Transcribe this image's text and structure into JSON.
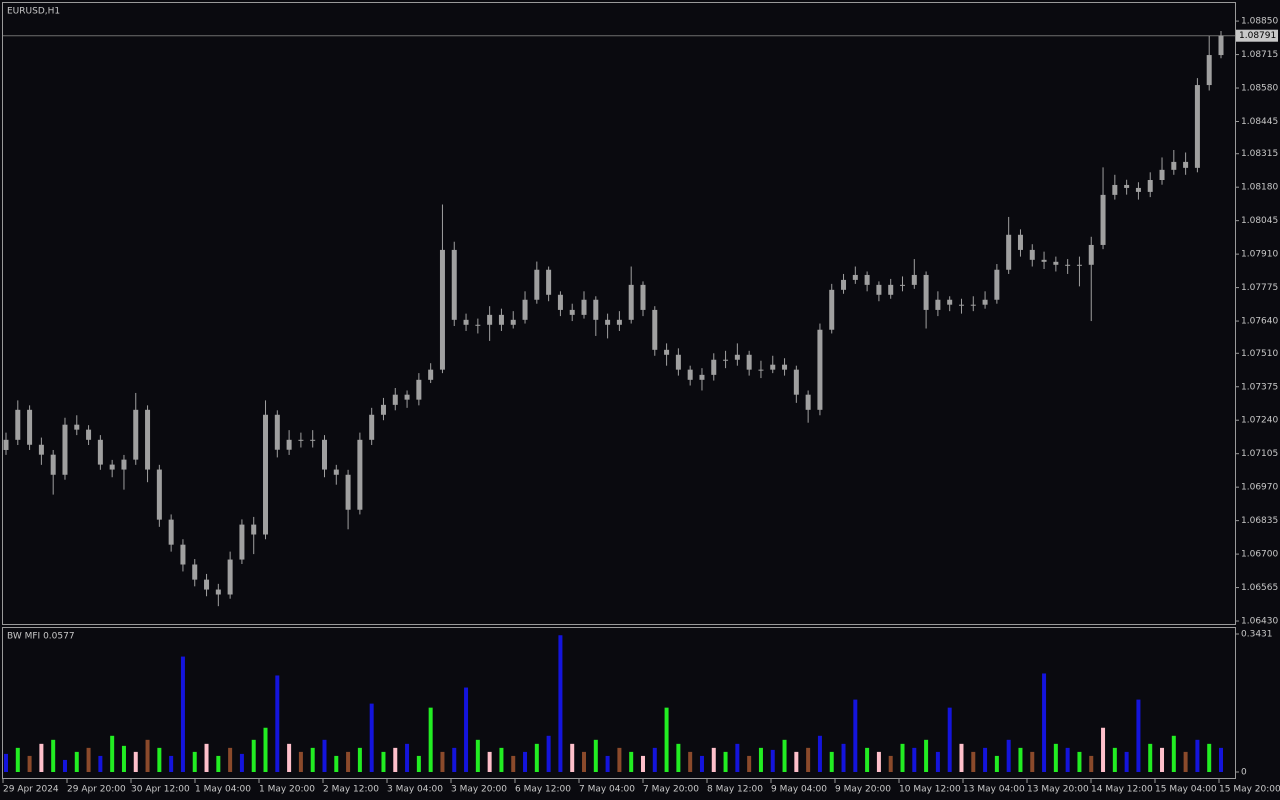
{
  "chart_data": [
    {
      "type": "candlestick",
      "title": "EURUSD,H1",
      "color": "#a0a0a0",
      "open": [
        1.0712,
        1.07161,
        1.07282,
        1.07141,
        1.07101,
        1.0702,
        1.07222,
        1.07202,
        1.07161,
        1.07061,
        1.07041,
        1.07081,
        1.07282,
        1.07041,
        1.06839,
        1.06738,
        1.06658,
        1.06597,
        1.06557,
        1.06537,
        1.06678,
        1.06819,
        1.06779,
        1.07262,
        1.07121,
        1.07161,
        1.07161,
        1.07161,
        1.07041,
        1.0702,
        1.06879,
        1.07161,
        1.07262,
        1.07302,
        1.07343,
        1.07323,
        1.07403,
        1.07444,
        1.07927,
        1.07645,
        1.07625,
        1.07625,
        1.07665,
        1.07625,
        1.07645,
        1.07726,
        1.07847,
        1.07746,
        1.07685,
        1.07665,
        1.07726,
        1.07645,
        1.07625,
        1.07645,
        1.07786,
        1.07685,
        1.07524,
        1.07504,
        1.07444,
        1.07403,
        1.07423,
        1.07484,
        1.07484,
        1.07504,
        1.07444,
        1.07444,
        1.07464,
        1.07444,
        1.07343,
        1.07282,
        1.07605,
        1.07766,
        1.07806,
        1.07826,
        1.07786,
        1.07746,
        1.07786,
        1.07786,
        1.07826,
        1.07685,
        1.07726,
        1.07706,
        1.07706,
        1.07706,
        1.07726,
        1.07847,
        1.07988,
        1.07927,
        1.07887,
        1.07879,
        1.07867,
        1.07867,
        1.07867,
        1.07947,
        1.08149,
        1.08189,
        1.08177,
        1.08161,
        1.08209,
        1.0825,
        1.08282,
        1.08258,
        1.08592,
        1.08713
      ],
      "high": [
        1.0719,
        1.0732,
        1.073,
        1.0717,
        1.0712,
        1.0725,
        1.0726,
        1.0722,
        1.0718,
        1.0708,
        1.071,
        1.0735,
        1.073,
        1.0706,
        1.0686,
        1.0676,
        1.0668,
        1.0662,
        1.0658,
        1.0671,
        1.0684,
        1.0685,
        1.0732,
        1.0728,
        1.072,
        1.0719,
        1.072,
        1.0718,
        1.0706,
        1.0704,
        1.0719,
        1.0729,
        1.0733,
        1.0737,
        1.0736,
        1.0743,
        1.0747,
        1.0811,
        1.0796,
        1.0767,
        1.0765,
        1.077,
        1.0769,
        1.0768,
        1.0776,
        1.0788,
        1.0786,
        1.0776,
        1.0771,
        1.0776,
        1.0774,
        1.0767,
        1.0768,
        1.0786,
        1.078,
        1.077,
        1.0755,
        1.0753,
        1.0746,
        1.0745,
        1.0751,
        1.0752,
        1.0755,
        1.0752,
        1.0748,
        1.075,
        1.0749,
        1.0746,
        1.0736,
        1.0763,
        1.0779,
        1.0783,
        1.0786,
        1.0784,
        1.078,
        1.0781,
        1.0782,
        1.0789,
        1.0784,
        1.0776,
        1.0774,
        1.0773,
        1.0774,
        1.0776,
        1.0787,
        1.0806,
        1.0801,
        1.0795,
        1.0792,
        1.079,
        1.0789,
        1.079,
        1.0798,
        1.0826,
        1.0823,
        1.0821,
        1.082,
        1.0824,
        1.083,
        1.0833,
        1.0832,
        1.0862,
        1.0879,
        1.0881
      ],
      "low": [
        1.071,
        1.0714,
        1.0712,
        1.0706,
        1.0694,
        1.07,
        1.0718,
        1.0714,
        1.0704,
        1.0701,
        1.0696,
        1.0706,
        1.0699,
        1.0681,
        1.0671,
        1.0663,
        1.0657,
        1.0653,
        1.0649,
        1.0652,
        1.0666,
        1.067,
        1.0676,
        1.0709,
        1.071,
        1.0713,
        1.0713,
        1.0701,
        1.0698,
        1.068,
        1.0686,
        1.0714,
        1.0724,
        1.0728,
        1.0729,
        1.073,
        1.0739,
        1.0743,
        1.0762,
        1.076,
        1.0759,
        1.0756,
        1.076,
        1.0761,
        1.0763,
        1.0771,
        1.0772,
        1.0766,
        1.0764,
        1.0765,
        1.0758,
        1.0757,
        1.076,
        1.0763,
        1.0766,
        1.075,
        1.0746,
        1.0742,
        1.0738,
        1.0736,
        1.074,
        1.0745,
        1.0746,
        1.0742,
        1.0741,
        1.0743,
        1.0742,
        1.0731,
        1.0723,
        1.0726,
        1.0759,
        1.0775,
        1.0779,
        1.0776,
        1.0772,
        1.0773,
        1.0776,
        1.0777,
        1.0761,
        1.0766,
        1.0768,
        1.0767,
        1.0768,
        1.0769,
        1.0771,
        1.0783,
        1.079,
        1.0786,
        1.0785,
        1.0784,
        1.0783,
        1.0778,
        1.0764,
        1.0793,
        1.0813,
        1.0815,
        1.0813,
        1.0814,
        1.0819,
        1.0823,
        1.0823,
        1.0824,
        1.0857,
        1.087
      ],
      "close": [
        1.07161,
        1.07282,
        1.07141,
        1.07101,
        1.0702,
        1.07222,
        1.07202,
        1.07161,
        1.07061,
        1.07041,
        1.07081,
        1.07282,
        1.07041,
        1.06839,
        1.06738,
        1.06658,
        1.06597,
        1.06557,
        1.06537,
        1.06678,
        1.06819,
        1.06779,
        1.07262,
        1.07121,
        1.07161,
        1.07161,
        1.07161,
        1.07041,
        1.0702,
        1.06879,
        1.07161,
        1.07262,
        1.07302,
        1.07343,
        1.07323,
        1.07403,
        1.07444,
        1.07927,
        1.07645,
        1.07625,
        1.07625,
        1.07665,
        1.07625,
        1.07645,
        1.07726,
        1.07847,
        1.07746,
        1.07685,
        1.07665,
        1.07726,
        1.07645,
        1.07625,
        1.07645,
        1.07786,
        1.07685,
        1.07524,
        1.07504,
        1.07444,
        1.07403,
        1.07423,
        1.07484,
        1.07484,
        1.07504,
        1.07444,
        1.07444,
        1.07464,
        1.07444,
        1.07343,
        1.07282,
        1.07605,
        1.07766,
        1.07806,
        1.07826,
        1.07786,
        1.07746,
        1.07786,
        1.07786,
        1.07826,
        1.07685,
        1.07726,
        1.07706,
        1.07706,
        1.07706,
        1.07726,
        1.07847,
        1.07988,
        1.07927,
        1.07887,
        1.07879,
        1.07867,
        1.07867,
        1.07867,
        1.07947,
        1.08149,
        1.08189,
        1.08177,
        1.08161,
        1.08209,
        1.0825,
        1.08282,
        1.08258,
        1.08592,
        1.08713,
        1.08791
      ],
      "last_price": 1.08791,
      "ylim": [
        1.06414,
        1.08927
      ],
      "yticks": [
        {
          "value": 1.0885,
          "label": "1.08850"
        },
        {
          "value": 1.08715,
          "label": "1.08715"
        },
        {
          "value": 1.0858,
          "label": "1.08580"
        },
        {
          "value": 1.08445,
          "label": "1.08445"
        },
        {
          "value": 1.08315,
          "label": "1.08315"
        },
        {
          "value": 1.0818,
          "label": "1.08180"
        },
        {
          "value": 1.08045,
          "label": "1.08045"
        },
        {
          "value": 1.0791,
          "label": "1.07910"
        },
        {
          "value": 1.07775,
          "label": "1.07775"
        },
        {
          "value": 1.0764,
          "label": "1.07640"
        },
        {
          "value": 1.0751,
          "label": "1.07510"
        },
        {
          "value": 1.07375,
          "label": "1.07375"
        },
        {
          "value": 1.0724,
          "label": "1.07240"
        },
        {
          "value": 1.07105,
          "label": "1.07105"
        },
        {
          "value": 1.0697,
          "label": "1.06970"
        },
        {
          "value": 1.06835,
          "label": "1.06835"
        },
        {
          "value": 1.067,
          "label": "1.06700"
        },
        {
          "value": 1.06565,
          "label": "1.06565"
        },
        {
          "value": 1.0643,
          "label": "1.06430"
        }
      ],
      "x_labels": [
        "29 Apr 2024",
        "29 Apr 20:00",
        "30 Apr 12:00",
        "1 May 04:00",
        "1 May 20:00",
        "2 May 12:00",
        "3 May 04:00",
        "3 May 20:00",
        "6 May 12:00",
        "7 May 04:00",
        "7 May 20:00",
        "8 May 12:00",
        "9 May 04:00",
        "9 May 20:00",
        "10 May 12:00",
        "13 May 04:00",
        "13 May 20:00",
        "14 May 12:00",
        "15 May 04:00",
        "15 May 20:00"
      ]
    },
    {
      "type": "bar",
      "title": "BW MFI 0.0577",
      "values": [
        0.045,
        0.06,
        0.04,
        0.07,
        0.08,
        0.03,
        0.05,
        0.06,
        0.04,
        0.09,
        0.065,
        0.05,
        0.08,
        0.06,
        0.04,
        0.287,
        0.05,
        0.07,
        0.04,
        0.06,
        0.045,
        0.08,
        0.11,
        0.24,
        0.07,
        0.05,
        0.06,
        0.08,
        0.04,
        0.05,
        0.06,
        0.17,
        0.05,
        0.06,
        0.07,
        0.04,
        0.16,
        0.05,
        0.06,
        0.21,
        0.08,
        0.05,
        0.06,
        0.04,
        0.05,
        0.07,
        0.09,
        0.34,
        0.07,
        0.05,
        0.08,
        0.04,
        0.06,
        0.05,
        0.04,
        0.06,
        0.16,
        0.07,
        0.05,
        0.04,
        0.06,
        0.05,
        0.07,
        0.04,
        0.06,
        0.055,
        0.08,
        0.05,
        0.06,
        0.09,
        0.05,
        0.07,
        0.18,
        0.06,
        0.05,
        0.04,
        0.07,
        0.06,
        0.08,
        0.05,
        0.16,
        0.07,
        0.05,
        0.06,
        0.04,
        0.08,
        0.06,
        0.05,
        0.245,
        0.07,
        0.06,
        0.05,
        0.04,
        0.11,
        0.06,
        0.05,
        0.18,
        0.07,
        0.06,
        0.09,
        0.05,
        0.08,
        0.07,
        0.06
      ],
      "colors": [
        "#1414dc",
        "#22ee22",
        "#8b4a2b",
        "#ffc0cb",
        "#22ee22",
        "#1414dc",
        "#22ee22",
        "#8b4a2b",
        "#1414dc",
        "#22ee22",
        "#22ee22",
        "#ffc0cb",
        "#8b4a2b",
        "#22ee22",
        "#1414dc",
        "#1414dc",
        "#22ee22",
        "#ffc0cb",
        "#22ee22",
        "#8b4a2b",
        "#1414dc",
        "#22ee22",
        "#22ee22",
        "#1414dc",
        "#ffc0cb",
        "#8b4a2b",
        "#22ee22",
        "#1414dc",
        "#22ee22",
        "#8b4a2b",
        "#22ee22",
        "#1414dc",
        "#22ee22",
        "#ffc0cb",
        "#1414dc",
        "#22ee22",
        "#22ee22",
        "#8b4a2b",
        "#1414dc",
        "#1414dc",
        "#22ee22",
        "#ffc0cb",
        "#22ee22",
        "#8b4a2b",
        "#1414dc",
        "#22ee22",
        "#1414dc",
        "#1414dc",
        "#ffc0cb",
        "#8b4a2b",
        "#22ee22",
        "#1414dc",
        "#8b4a2b",
        "#22ee22",
        "#ffc0cb",
        "#1414dc",
        "#22ee22",
        "#22ee22",
        "#8b4a2b",
        "#1414dc",
        "#ffc0cb",
        "#22ee22",
        "#1414dc",
        "#8b4a2b",
        "#22ee22",
        "#1414dc",
        "#22ee22",
        "#ffc0cb",
        "#8b4a2b",
        "#1414dc",
        "#22ee22",
        "#1414dc",
        "#1414dc",
        "#22ee22",
        "#ffc0cb",
        "#8b4a2b",
        "#22ee22",
        "#1414dc",
        "#22ee22",
        "#1414dc",
        "#1414dc",
        "#ffc0cb",
        "#8b4a2b",
        "#1414dc",
        "#22ee22",
        "#1414dc",
        "#22ee22",
        "#8b4a2b",
        "#1414dc",
        "#22ee22",
        "#1414dc",
        "#22ee22",
        "#8b4a2b",
        "#ffc0cb",
        "#22ee22",
        "#1414dc",
        "#1414dc",
        "#22ee22",
        "#ffc0cb",
        "#22ee22",
        "#8b4a2b",
        "#1414dc",
        "#22ee22",
        "#1414dc"
      ],
      "ylim": [
        0,
        0.3431
      ],
      "yticks": [
        0,
        0.3431
      ]
    }
  ]
}
